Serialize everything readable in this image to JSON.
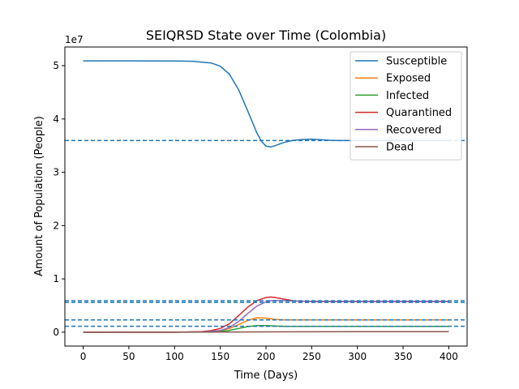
{
  "chart_data": {
    "type": "line",
    "title": "SEIQRSD State over Time (Colombia)",
    "xlabel": "Time (Days)",
    "ylabel": "Amount of Population (People)",
    "y_offset_label": "1e7",
    "xlim": [
      -20,
      420
    ],
    "ylim": [
      -2600000,
      53500000
    ],
    "x_ticks": [
      0,
      50,
      100,
      150,
      200,
      250,
      300,
      350,
      400
    ],
    "x_tick_labels": [
      "0",
      "50",
      "100",
      "150",
      "200",
      "250",
      "300",
      "350",
      "400"
    ],
    "y_ticks": [
      0,
      10000000,
      20000000,
      30000000,
      40000000,
      50000000
    ],
    "y_tick_labels": [
      "0",
      "1",
      "2",
      "3",
      "4",
      "5"
    ],
    "grid": false,
    "legend_position": "top-right",
    "series": [
      {
        "name": "Susceptible",
        "color": "#1f77b4",
        "x": [
          0,
          50,
          100,
          120,
          140,
          150,
          160,
          170,
          180,
          190,
          195,
          200,
          205,
          210,
          220,
          230,
          240,
          250,
          260,
          270,
          280,
          300,
          350,
          400
        ],
        "y": [
          50900000,
          50900000,
          50880000,
          50820000,
          50500000,
          49900000,
          48400000,
          45500000,
          41500000,
          37400000,
          35800000,
          34900000,
          34750000,
          35000000,
          35600000,
          36000000,
          36150000,
          36200000,
          36100000,
          36000000,
          35950000,
          35950000,
          35950000,
          35950000
        ]
      },
      {
        "name": "Exposed",
        "color": "#ff7f0e",
        "x": [
          0,
          100,
          130,
          150,
          160,
          170,
          180,
          190,
          200,
          210,
          220,
          240,
          260,
          300,
          400
        ],
        "y": [
          0,
          0,
          50000,
          300000,
          700000,
          1400000,
          2200000,
          2700000,
          2650000,
          2400000,
          2300000,
          2300000,
          2300000,
          2300000,
          2300000
        ]
      },
      {
        "name": "Infected",
        "color": "#2ca02c",
        "x": [
          0,
          100,
          130,
          150,
          160,
          170,
          180,
          190,
          200,
          210,
          220,
          240,
          260,
          300,
          400
        ],
        "y": [
          0,
          0,
          20000,
          150000,
          350000,
          700000,
          1050000,
          1250000,
          1250000,
          1150000,
          1100000,
          1100000,
          1100000,
          1100000,
          1100000
        ]
      },
      {
        "name": "Quarantined",
        "color": "#d62728",
        "x": [
          0,
          100,
          130,
          140,
          150,
          160,
          170,
          180,
          190,
          200,
          205,
          210,
          220,
          230,
          240,
          250,
          260,
          300,
          400
        ],
        "y": [
          0,
          0,
          100000,
          300000,
          700000,
          1600000,
          3100000,
          4700000,
          5900000,
          6500000,
          6600000,
          6500000,
          6200000,
          5900000,
          5800000,
          5750000,
          5750000,
          5750000,
          5750000
        ]
      },
      {
        "name": "Recovered",
        "color": "#9467bd",
        "x": [
          0,
          100,
          130,
          150,
          160,
          170,
          180,
          190,
          200,
          205,
          210,
          220,
          230,
          240,
          260,
          300,
          400
        ],
        "y": [
          0,
          0,
          50000,
          300000,
          900000,
          2000000,
          3500000,
          4900000,
          5700000,
          5900000,
          5950000,
          5900000,
          5850000,
          5800000,
          5800000,
          5800000,
          5800000
        ]
      },
      {
        "name": "Dead",
        "color": "#8c564b",
        "x": [
          0,
          150,
          200,
          250,
          300,
          400
        ],
        "y": [
          0,
          10000,
          60000,
          80000,
          90000,
          100000
        ]
      }
    ],
    "reference_lines": {
      "color": "#1f77b4",
      "style": "dashed",
      "y": [
        35950000,
        5900000,
        5600000,
        2300000,
        1100000
      ]
    }
  }
}
